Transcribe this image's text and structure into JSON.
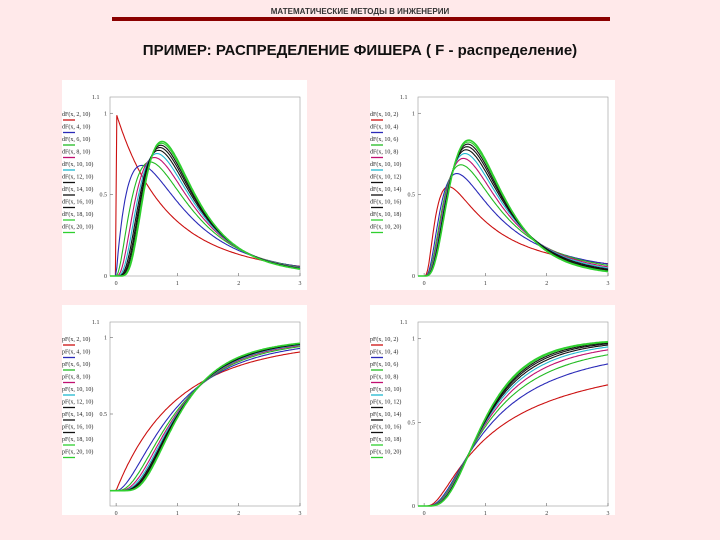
{
  "header": {
    "text": "МАТЕМАТИЧЕСКИЕ МЕТОДЫ В ИНЖЕНЕРИИ",
    "bar_color": "#8b0000"
  },
  "title": "ПРИМЕР: РАСПРЕДЕЛЕНИЕ ФИШЕРА ( F - распределение)",
  "colors": [
    "#cc1111",
    "#2a2ab8",
    "#22bb22",
    "#c01070",
    "#20b8d0",
    "#111111",
    "#111111",
    "#111111",
    "#2fcf2f"
  ],
  "chart_data": [
    {
      "id": "pdf-m",
      "type": "line",
      "func": "pdf",
      "vary": "m",
      "m_values": [
        2,
        4,
        6,
        8,
        10,
        12,
        14,
        16,
        18,
        20
      ],
      "n_values": [
        10
      ],
      "legend": [
        "dF(x, 2, 10)",
        "dF(x, 4, 10)",
        "dF(x, 6, 10)",
        "dF(x, 8, 10)",
        "dF(x, 10, 10)",
        "dF(x, 12, 10)",
        "dF(x, 14, 10)",
        "dF(x, 16, 10)",
        "dF(x, 18, 10)",
        "dF(x, 20, 10)"
      ],
      "xlim": [
        -0.1,
        3
      ],
      "ylim": [
        0,
        1.1
      ],
      "xticks": [
        "0",
        "1",
        "2",
        "3"
      ],
      "yticks": [
        "0",
        "0.5",
        "1"
      ],
      "xlabel": "x",
      "xmin_label": "- 0.1",
      "ymax_label": "1.1",
      "ymin_label": "0"
    },
    {
      "id": "pdf-n",
      "type": "line",
      "func": "pdf",
      "vary": "n",
      "m_values": [
        10
      ],
      "n_values": [
        2,
        4,
        6,
        8,
        10,
        12,
        14,
        16,
        18,
        20
      ],
      "legend": [
        "dF(x, 10, 2)",
        "dF(x, 10, 4)",
        "dF(x, 10, 6)",
        "dF(x, 10, 8)",
        "dF(x, 10, 10)",
        "dF(x, 10, 12)",
        "dF(x, 10, 14)",
        "dF(x, 10, 16)",
        "dF(x, 10, 18)",
        "dF(x, 10, 20)"
      ],
      "xlim": [
        -0.1,
        3
      ],
      "ylim": [
        0,
        1.1
      ],
      "xticks": [
        "0",
        "1",
        "2",
        "3"
      ],
      "yticks": [
        "0",
        "0.5",
        "1"
      ],
      "xlabel": "x",
      "xmin_label": "- 0.1",
      "ymax_label": "1.1",
      "ymin_label": "0"
    },
    {
      "id": "cdf-m",
      "type": "line",
      "func": "cdf",
      "vary": "m",
      "m_values": [
        2,
        4,
        6,
        8,
        10,
        12,
        14,
        16,
        18,
        20
      ],
      "n_values": [
        10
      ],
      "legend": [
        "pF(x, 2, 10)",
        "pF(x, 4, 10)",
        "pF(x, 6, 10)",
        "pF(x, 8, 10)",
        "pF(x, 10, 10)",
        "pF(x, 12, 10)",
        "pF(x, 14, 10)",
        "pF(x, 16, 10)",
        "pF(x, 18, 10)",
        "pF(x, 20, 10)"
      ],
      "xlim": [
        -0.1,
        3
      ],
      "ylim": [
        -0.1,
        1.1
      ],
      "xticks": [
        "0",
        "1",
        "2",
        "3"
      ],
      "yticks": [
        "0.5",
        "1"
      ],
      "xlabel": "x",
      "xmin_label": "- 0.1",
      "ymax_label": "1.1",
      "ymin_label": "- 0.1"
    },
    {
      "id": "cdf-n",
      "type": "line",
      "func": "cdf",
      "vary": "n",
      "m_values": [
        10
      ],
      "n_values": [
        2,
        4,
        6,
        8,
        10,
        12,
        14,
        16,
        18,
        20
      ],
      "legend": [
        "pF(x, 10, 2)",
        "pF(x, 10, 4)",
        "pF(x, 10, 6)",
        "pF(x, 10, 8)",
        "pF(x, 10, 10)",
        "pF(x, 10, 12)",
        "pF(x, 10, 14)",
        "pF(x, 10, 16)",
        "pF(x, 10, 18)",
        "pF(x, 10, 20)"
      ],
      "xlim": [
        -0.1,
        3
      ],
      "ylim": [
        0,
        1.1
      ],
      "xticks": [
        "0",
        "1",
        "2",
        "3"
      ],
      "yticks": [
        "0",
        "0.5",
        "1"
      ],
      "xlabel": "x",
      "xmin_label": "- 0.1",
      "ymax_label": "1.1",
      "ymin_label": "0"
    }
  ]
}
